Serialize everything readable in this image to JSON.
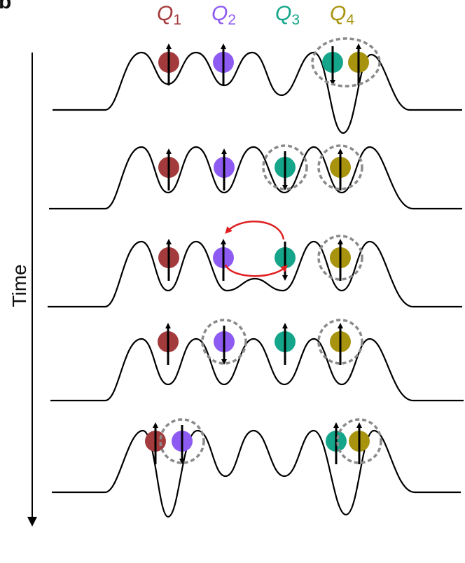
{
  "panel_label": "b",
  "time_axis_label": "Time",
  "qubits": [
    {
      "id": "Q1",
      "letter": "Q",
      "index": "1",
      "color": "#A33B3C"
    },
    {
      "id": "Q2",
      "letter": "Q",
      "index": "2",
      "color": "#8E5BF2"
    },
    {
      "id": "Q3",
      "letter": "Q",
      "index": "3",
      "color": "#14A58A"
    },
    {
      "id": "Q4",
      "letter": "Q",
      "index": "4",
      "color": "#A8930E"
    }
  ],
  "steps": [
    {
      "name": "step-1",
      "spins": [
        "up",
        "up",
        "down",
        "up"
      ],
      "pairs": [
        "Q3-Q4"
      ],
      "exchange": null
    },
    {
      "name": "step-2",
      "spins": [
        "up",
        "up",
        "down",
        "up"
      ],
      "pairs": [
        "Q3",
        "Q4"
      ],
      "exchange": null
    },
    {
      "name": "step-3",
      "spins": [
        "up",
        "up",
        "down",
        "up"
      ],
      "pairs": [
        "Q4"
      ],
      "exchange": "Q2-Q3"
    },
    {
      "name": "step-4",
      "spins": [
        "up",
        "down",
        "up",
        "up"
      ],
      "pairs": [
        "Q2",
        "Q4"
      ],
      "exchange": null
    },
    {
      "name": "step-5",
      "spins": [
        "up",
        "down",
        "up",
        "up"
      ],
      "pairs": [
        "Q1-Q2",
        "Q3-Q4"
      ],
      "exchange": null
    }
  ],
  "colors": {
    "line": "#000000",
    "dashed_circle": "#8a8a8a",
    "exchange_arrow": "#E02020"
  }
}
